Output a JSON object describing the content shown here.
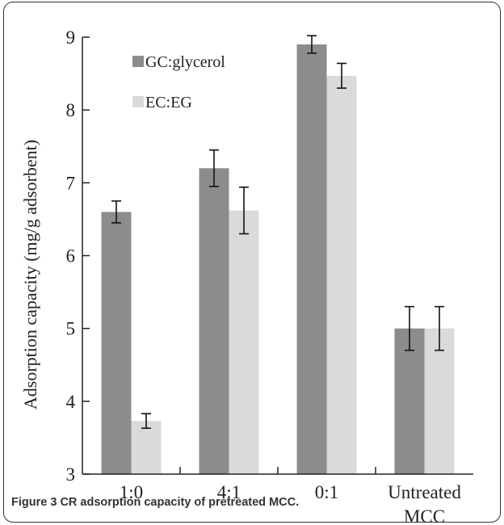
{
  "chart_data": {
    "type": "bar",
    "categories": [
      "1:0",
      "4:1",
      "0:1",
      "Untreated MCC"
    ],
    "series": [
      {
        "name": "GC:glycerol",
        "color": "#8c8c8e",
        "values": [
          6.6,
          7.2,
          8.9,
          5.0
        ],
        "errors": [
          0.15,
          0.25,
          0.12,
          0.3
        ]
      },
      {
        "name": "EC:EG",
        "color": "#dadadb",
        "values": [
          3.73,
          6.62,
          8.47,
          5.0
        ],
        "errors": [
          0.1,
          0.32,
          0.17,
          0.3
        ]
      }
    ],
    "ylabel": "Adsorption capacity (mg/g adsorbent)",
    "xlabel": "",
    "ylim": [
      3,
      9
    ],
    "yticks": [
      "3",
      "4",
      "5",
      "6",
      "7",
      "8",
      "9"
    ],
    "xtick_lines": [
      [
        "1:0"
      ],
      [
        "4:1"
      ],
      [
        "0:1"
      ],
      [
        "Untreated",
        "MCC"
      ]
    ],
    "grid": false,
    "legend_position": "top-left"
  },
  "caption": {
    "figure_label": "Figure 3",
    "text": "CR adsorption capacity of pretreated MCC."
  }
}
